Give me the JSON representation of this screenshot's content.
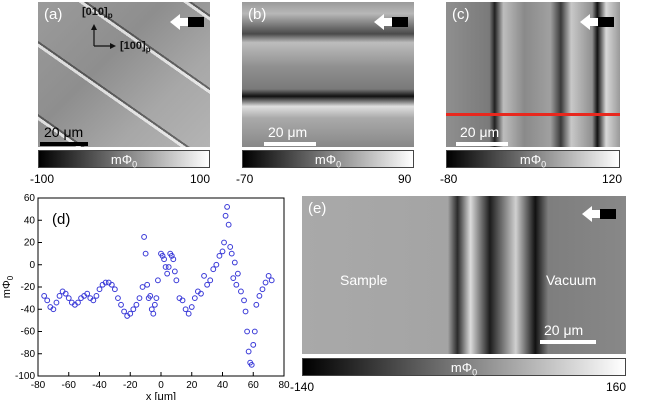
{
  "panels": {
    "a": {
      "label": "(a)",
      "axis_y": "[010]",
      "axis_x": "[100]",
      "axis_sub": "p",
      "scale": "20 μm",
      "cbar_label": "mΦ",
      "cbar_sub": "0",
      "cbar_min": "-100",
      "cbar_max": "100"
    },
    "b": {
      "label": "(b)",
      "scale": "20 μm",
      "cbar_label": "mΦ",
      "cbar_sub": "0",
      "cbar_min": "-70",
      "cbar_max": "90"
    },
    "c": {
      "label": "(c)",
      "scale": "20 μm",
      "cbar_label": "mΦ",
      "cbar_sub": "0",
      "cbar_min": "-80",
      "cbar_max": "120"
    },
    "e": {
      "label": "(e)",
      "left_text": "Sample",
      "right_text": "Vacuum",
      "scale": "20 μm",
      "cbar_label": "mΦ",
      "cbar_sub": "0",
      "cbar_min": "-140",
      "cbar_max": "160"
    }
  },
  "chart_data": {
    "type": "scatter",
    "label": "(d)",
    "xlabel": "x [μm]",
    "ylabel": "mΦ",
    "ylabel_sub": "0",
    "xlim": [
      -80,
      80
    ],
    "ylim": [
      -100,
      60
    ],
    "xticks": [
      -80,
      -60,
      -40,
      -20,
      0,
      20,
      40,
      60,
      80
    ],
    "yticks": [
      -100,
      -80,
      -60,
      -40,
      -20,
      0,
      20,
      40,
      60
    ],
    "marker_color": "#3a3ad8",
    "x": [
      -76,
      -74,
      -72,
      -70,
      -68,
      -66,
      -64,
      -62,
      -60,
      -58,
      -56,
      -54,
      -52,
      -50,
      -48,
      -46,
      -44,
      -42,
      -40,
      -38,
      -36,
      -34,
      -32,
      -30,
      -28,
      -26,
      -24,
      -22,
      -20,
      -18,
      -16,
      -14,
      -12,
      -11,
      -10,
      -9,
      -8,
      -7,
      -6,
      -5,
      -4,
      -3,
      -2,
      0,
      1,
      2,
      3,
      4,
      5,
      6,
      7,
      8,
      9,
      10,
      12,
      14,
      16,
      18,
      20,
      22,
      24,
      26,
      28,
      30,
      32,
      34,
      36,
      38,
      40,
      41,
      42,
      43,
      44,
      45,
      46,
      47,
      48,
      49,
      50,
      52,
      54,
      55,
      56,
      57,
      58,
      59,
      60,
      61,
      62,
      64,
      66,
      68,
      70,
      72
    ],
    "y": [
      -28,
      -32,
      -38,
      -40,
      -34,
      -28,
      -24,
      -26,
      -30,
      -34,
      -36,
      -34,
      -30,
      -28,
      -26,
      -30,
      -32,
      -28,
      -22,
      -18,
      -16,
      -16,
      -18,
      -22,
      -30,
      -36,
      -42,
      -46,
      -44,
      -40,
      -36,
      -30,
      -20,
      25,
      10,
      -18,
      -30,
      -28,
      -40,
      -44,
      -36,
      -30,
      -14,
      10,
      8,
      5,
      -2,
      -8,
      -2,
      10,
      8,
      5,
      -6,
      -14,
      -30,
      -32,
      -40,
      -44,
      -38,
      -30,
      -24,
      -26,
      -10,
      -18,
      -14,
      -4,
      0,
      8,
      12,
      20,
      44,
      52,
      36,
      16,
      10,
      -12,
      2,
      -18,
      -8,
      -24,
      -32,
      -42,
      -60,
      -78,
      -88,
      -90,
      -72,
      -60,
      -36,
      -28,
      -22,
      -16,
      -10,
      -14
    ]
  },
  "colors": {
    "accent_red": "#e8281e",
    "marker_blue": "#3a3ad8"
  }
}
